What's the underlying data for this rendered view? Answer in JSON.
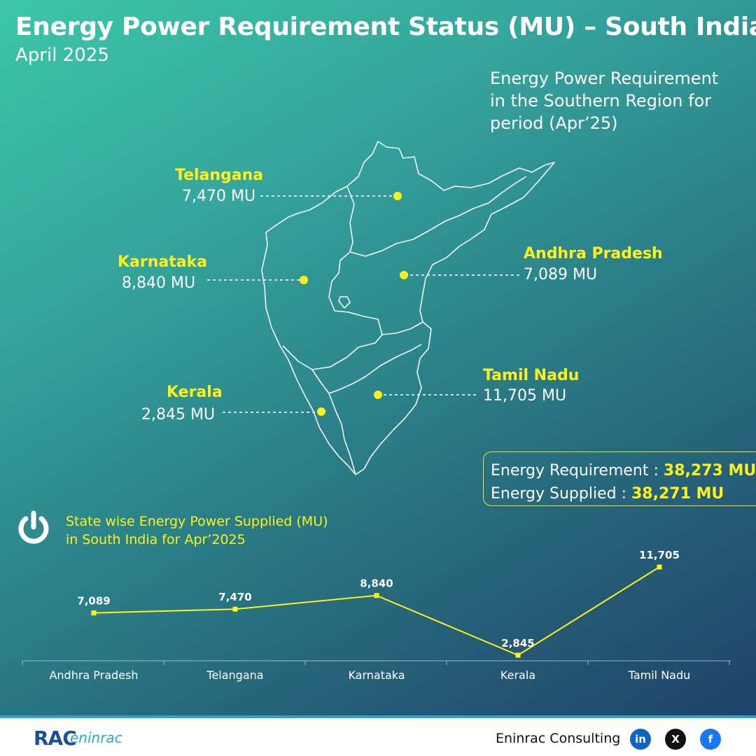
{
  "header": {
    "title": "Energy Power Requirement Status (MU) – South India",
    "subtitle": "April 2025"
  },
  "region_description": [
    "Energy Power Requirement",
    "in the Southern Region for",
    "period (Apr’25)"
  ],
  "map_labels": {
    "telangana": {
      "name": "Telangana",
      "value": "7,470 MU"
    },
    "karnataka": {
      "name": "Karnataka",
      "value": "8,840 MU"
    },
    "andhra": {
      "name": "Andhra Pradesh",
      "value": "7,089 MU"
    },
    "kerala": {
      "name": "Kerala",
      "value": "2,845 MU"
    },
    "tamil": {
      "name": "Tamil Nadu",
      "value": "11,705 MU"
    }
  },
  "summary": {
    "requirement_label": "Energy Requirement : ",
    "requirement_value": "38,273 MU",
    "supplied_label": "Energy Supplied : ",
    "supplied_value": "38,271 MU"
  },
  "chart_title": [
    "State wise Energy Power Supplied (MU)",
    "in South India for Apr’2025"
  ],
  "chart_data": {
    "type": "line",
    "categories": [
      "Andhra Pradesh",
      "Telangana",
      "Karnataka",
      "Kerala",
      "Tamil Nadu"
    ],
    "values": [
      7089,
      7470,
      8840,
      2845,
      11705
    ],
    "value_labels": [
      "7,089",
      "7,470",
      "8,840",
      "2,845",
      "11,705"
    ],
    "title": "State wise Energy Power Supplied (MU) in South India for Apr’2025",
    "xlabel": "",
    "ylabel": "",
    "ylim": [
      2845,
      11705
    ],
    "grid": false,
    "line_color": "#fff21a"
  },
  "footer": {
    "logo_main": "RAC",
    "logo_sub": "eninrac",
    "brand": "Eninrac Consulting",
    "social": {
      "linkedin": "in",
      "x": "X",
      "facebook": "f"
    }
  },
  "colors": {
    "accent": "#fff21a",
    "footer_bar": "#2fa2d8",
    "linkedin": "#0a66c2",
    "facebook": "#1877f2"
  }
}
